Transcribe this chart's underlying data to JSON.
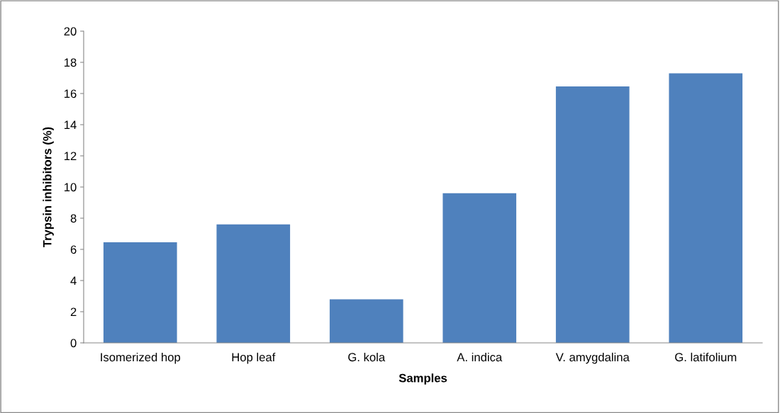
{
  "chart_data": {
    "type": "bar",
    "xlabel": "Samples",
    "ylabel": "Trypsin inhibitors (%)",
    "categories": [
      "Isomerized hop",
      "Hop leaf",
      "G. kola",
      "A. indica",
      "V. amygdalina",
      "G. latifolium"
    ],
    "values": [
      6.45,
      7.6,
      2.8,
      9.6,
      16.45,
      17.3
    ],
    "color": "#4f81bd",
    "ylim": [
      0,
      20
    ],
    "yticks": [
      0,
      2,
      4,
      6,
      8,
      10,
      12,
      14,
      16,
      18,
      20
    ],
    "grid": false,
    "legend": false
  }
}
